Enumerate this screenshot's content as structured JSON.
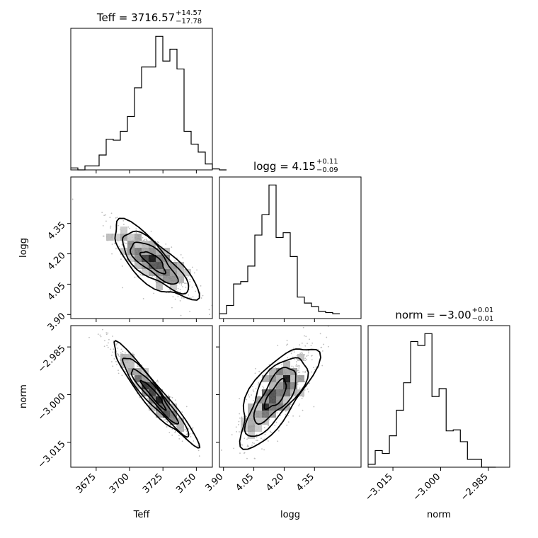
{
  "chart_data": {
    "type": "corner",
    "parameters": [
      "Teff",
      "logg",
      "norm"
    ],
    "titles": [
      {
        "param": "Teff",
        "main": "Teff = 3716.57",
        "sup": "+14.57",
        "sub": "−17.78"
      },
      {
        "param": "logg",
        "main": "logg = 4.15",
        "sup": "+0.11",
        "sub": "−0.09"
      },
      {
        "param": "norm",
        "main": "norm = −3.00",
        "sup": "+0.01",
        "sub": "−0.01"
      }
    ],
    "axis_labels": {
      "Teff": "Teff",
      "logg": "logg",
      "norm": "norm"
    },
    "ranges": {
      "Teff": [
        3656,
        3762
      ],
      "logg": [
        3.88,
        4.58
      ],
      "norm": [
        -3.0228,
        -2.9783
      ]
    },
    "ticks": {
      "Teff": [
        "3675",
        "3700",
        "3725",
        "3750"
      ],
      "logg": [
        "3.90",
        "4.05",
        "4.20",
        "4.35"
      ],
      "norm": [
        "−3.015",
        "−3.000",
        "−2.985"
      ]
    },
    "tick_values": {
      "Teff": [
        3675,
        3700,
        3725,
        3750
      ],
      "logg": [
        3.9,
        4.05,
        4.2,
        4.35
      ],
      "norm": [
        -3.015,
        -3.0,
        -2.985
      ]
    },
    "histograms": {
      "Teff": {
        "x0": 3656,
        "dx": 5.3,
        "counts": [
          2,
          0,
          4,
          4,
          15,
          31,
          30,
          39,
          54,
          83,
          104,
          104,
          135,
          110,
          122,
          102,
          39,
          26,
          18,
          6,
          1,
          0
        ]
      },
      "logg": {
        "x0": 3.88,
        "dx": 0.035,
        "counts": [
          4,
          11,
          29,
          31,
          44,
          70,
          87,
          112,
          68,
          72,
          52,
          18,
          13,
          10,
          6,
          5,
          4
        ]
      },
      "norm": {
        "x0": -3.0228,
        "dx": 0.00223,
        "counts": [
          3,
          17,
          14,
          32,
          58,
          86,
          128,
          124,
          136,
          72,
          80,
          37,
          38,
          26,
          8,
          8,
          0,
          0
        ]
      }
    },
    "scatter_density": "grey points and 2D histogram shading",
    "contour_levels": 4
  }
}
